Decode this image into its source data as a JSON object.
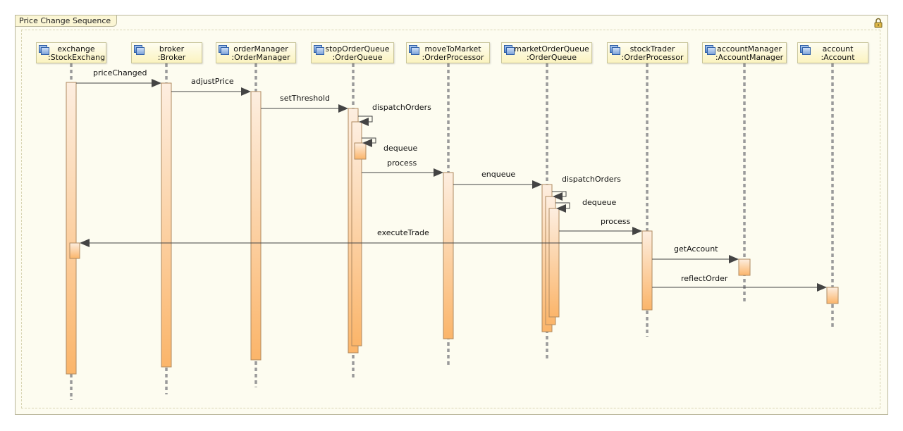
{
  "frame": {
    "title": "Price Change Sequence",
    "lock_icon": "lock-icon"
  },
  "lifelines": [
    {
      "id": "exchange",
      "name": "exchange",
      "type": ":StockExchang"
    },
    {
      "id": "broker",
      "name": "broker",
      "type": ":Broker"
    },
    {
      "id": "orderManager",
      "name": "orderManager",
      "type": ":OrderManager"
    },
    {
      "id": "stopOrderQueue",
      "name": "stopOrderQueue",
      "type": ":OrderQueue"
    },
    {
      "id": "moveToMarket",
      "name": "moveToMarket",
      "type": ":OrderProcessor"
    },
    {
      "id": "marketOrderQueue",
      "name": "marketOrderQueue",
      "type": ":OrderQueue"
    },
    {
      "id": "stockTrader",
      "name": "stockTrader",
      "type": ":OrderProcessor"
    },
    {
      "id": "accountManager",
      "name": "accountManager",
      "type": ":AccountManager"
    },
    {
      "id": "account",
      "name": "account",
      "type": ":Account"
    }
  ],
  "messages": [
    {
      "label": "priceChanged",
      "from": "exchange",
      "to": "broker"
    },
    {
      "label": "adjustPrice",
      "from": "broker",
      "to": "orderManager"
    },
    {
      "label": "setThreshold",
      "from": "orderManager",
      "to": "stopOrderQueue"
    },
    {
      "label": "dispatchOrders",
      "from": "stopOrderQueue",
      "to": "stopOrderQueue"
    },
    {
      "label": "dequeue",
      "from": "stopOrderQueue",
      "to": "stopOrderQueue"
    },
    {
      "label": "process",
      "from": "stopOrderQueue",
      "to": "moveToMarket"
    },
    {
      "label": "enqueue",
      "from": "moveToMarket",
      "to": "marketOrderQueue"
    },
    {
      "label": "dispatchOrders",
      "from": "marketOrderQueue",
      "to": "marketOrderQueue"
    },
    {
      "label": "dequeue",
      "from": "marketOrderQueue",
      "to": "marketOrderQueue"
    },
    {
      "label": "process",
      "from": "marketOrderQueue",
      "to": "stockTrader"
    },
    {
      "label": "executeTrade",
      "from": "stockTrader",
      "to": "exchange"
    },
    {
      "label": "getAccount",
      "from": "stockTrader",
      "to": "accountManager"
    },
    {
      "label": "reflectOrder",
      "from": "stockTrader",
      "to": "account"
    }
  ],
  "colors": {
    "activation_top": "#fdeee0",
    "activation_bottom": "#fbb86a",
    "lifeline": "#9a9a9a",
    "arrow": "#444444",
    "frame_bg": "#fdfcf0"
  }
}
